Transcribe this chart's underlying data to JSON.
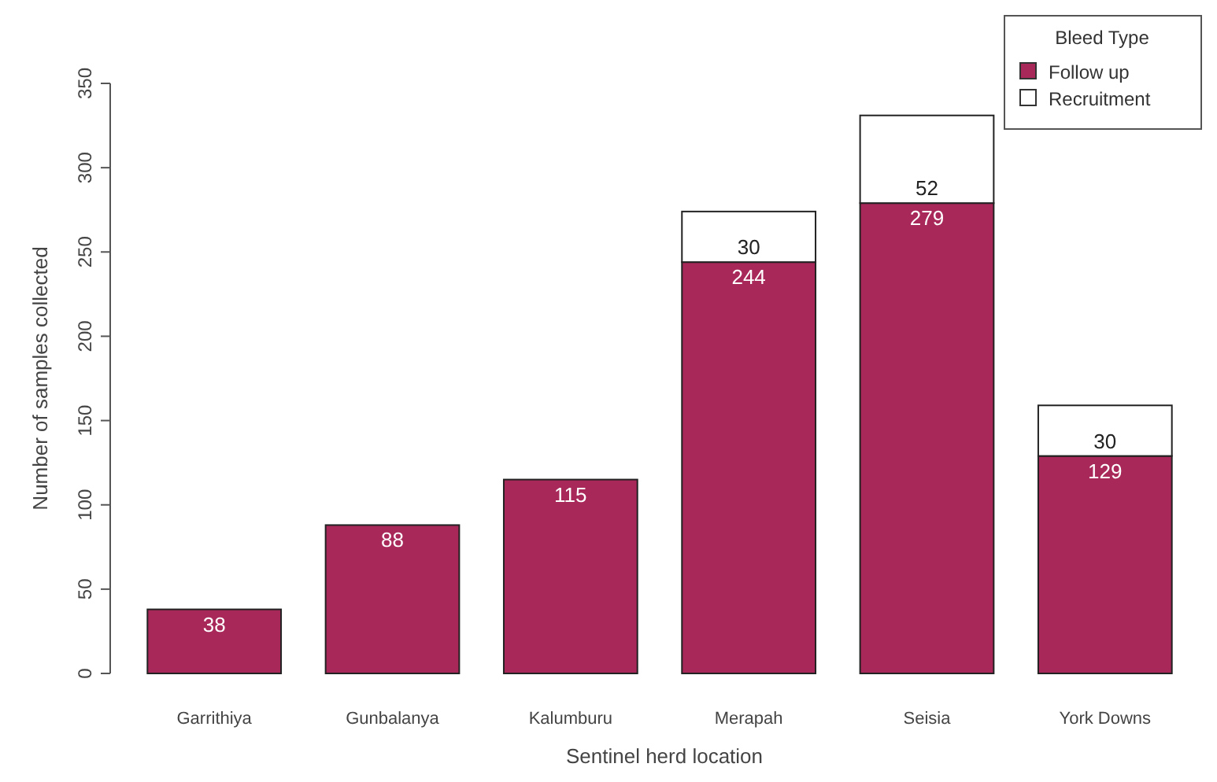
{
  "chart_data": {
    "type": "bar",
    "stacked": true,
    "xlabel": "Sentinel herd location",
    "ylabel": "Number of samples collected",
    "legend_title": "Bleed Type",
    "legend": "top right",
    "data_labels": true,
    "categories": [
      "Garrithiya",
      "Gunbalanya",
      "Kalumburu",
      "Merapah",
      "Seisia",
      "York Downs"
    ],
    "ylim": [
      0,
      350
    ],
    "yticks": [
      0,
      50,
      100,
      150,
      200,
      250,
      300,
      350
    ],
    "series": [
      {
        "name": "Follow up",
        "color": "#a8285a",
        "values": [
          38,
          88,
          115,
          244,
          279,
          129
        ]
      },
      {
        "name": "Recruitment",
        "color": "#ffffff",
        "values": [
          null,
          null,
          null,
          30,
          52,
          30
        ]
      }
    ]
  }
}
